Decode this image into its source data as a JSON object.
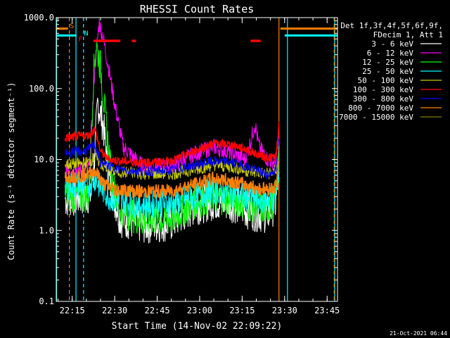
{
  "chart_data": {
    "type": "line",
    "title": "RHESSI Count Rates",
    "xlabel": "Start Time (14-Nov-02 22:09:22)",
    "ylabel": "Count Rate (s⁻¹ detector segment⁻¹)",
    "y_scale": "log",
    "ylim": [
      0.1,
      1000
    ],
    "y_ticks": [
      {
        "v": 1000,
        "label": "1000.0"
      },
      {
        "v": 100,
        "label": "100.0"
      },
      {
        "v": 10,
        "label": "10.0"
      },
      {
        "v": 1,
        "label": "1.0"
      },
      {
        "v": 0.1,
        "label": "0.1"
      }
    ],
    "xlim": [
      "22:09:22",
      "23:48:40"
    ],
    "x_ticks": [
      "22:15",
      "22:30",
      "22:45",
      "23:00",
      "23:15",
      "23:30",
      "23:45"
    ],
    "legend_position": "right",
    "legend_header": [
      "Det 1f,3f,4f,5f,6f,9f,",
      "FDecim 1, Att 1"
    ],
    "data_start": "22:12:30",
    "data_end": "23:28:00",
    "series": [
      {
        "name": "3 - 6 keV",
        "color": "#ffffff",
        "x": [
          "22:12:30",
          "22:16:00",
          "22:19:00",
          "22:21:30",
          "22:23:00",
          "22:24:00",
          "22:26:00",
          "22:28:00",
          "22:32:00",
          "22:40:00",
          "22:50:00",
          "22:58:00",
          "23:05:00",
          "23:12:00",
          "23:16:00",
          "23:20:00",
          "23:24:00",
          "23:27:00",
          "23:28:00"
        ],
        "y": [
          2.8,
          2.9,
          3.0,
          3.2,
          12,
          65,
          30,
          5,
          1.5,
          1.2,
          1.3,
          2.2,
          2.6,
          2.4,
          2.0,
          1.8,
          1.7,
          2.5,
          8
        ]
      },
      {
        "name": "6 - 12 keV",
        "color": "#ff00ff",
        "x": [
          "22:12:30",
          "22:16:00",
          "22:19:00",
          "22:21:00",
          "22:23:00",
          "22:24:30",
          "22:26:00",
          "22:28:00",
          "22:30:00",
          "22:33:00",
          "22:40:00",
          "22:50:00",
          "22:58:00",
          "23:05:00",
          "23:12:00",
          "23:16:00",
          "23:18:00",
          "23:19:30",
          "23:21:00",
          "23:24:00",
          "23:27:00",
          "23:28:00"
        ],
        "y": [
          7.5,
          7.3,
          7.2,
          7.5,
          200,
          860,
          500,
          180,
          60,
          15,
          8,
          8,
          12,
          15,
          12,
          10,
          18,
          32,
          15,
          10,
          9,
          22
        ]
      },
      {
        "name": "12 - 25 keV",
        "color": "#00ff00",
        "x": [
          "22:12:30",
          "22:16:00",
          "22:19:00",
          "22:21:00",
          "22:22:30",
          "22:23:30",
          "22:25:00",
          "22:27:00",
          "22:29:00",
          "22:32:00",
          "22:40:00",
          "22:50:00",
          "22:58:00",
          "23:05:00",
          "23:12:00",
          "23:16:00",
          "23:20:00",
          "23:24:00",
          "23:27:00",
          "23:28:00"
        ],
        "y": [
          3.2,
          3.1,
          3.0,
          3.2,
          150,
          430,
          200,
          30,
          5,
          2,
          1.4,
          1.5,
          2.5,
          3.0,
          2.8,
          2.5,
          2.2,
          2.0,
          3,
          10
        ]
      },
      {
        "name": "25 - 50 keV",
        "color": "#00ffff",
        "x": [
          "22:12:30",
          "22:16:00",
          "22:19:00",
          "22:21:00",
          "22:23:00",
          "22:25:00",
          "22:28:00",
          "22:32:00",
          "22:40:00",
          "22:50:00",
          "22:58:00",
          "23:05:00",
          "23:12:00",
          "23:16:00",
          "23:20:00",
          "23:24:00",
          "23:27:00",
          "23:28:00"
        ],
        "y": [
          4.2,
          4.3,
          4.2,
          4.5,
          5.5,
          4.0,
          3.0,
          2.5,
          2.3,
          2.4,
          2.9,
          3.6,
          3.4,
          3.0,
          2.8,
          2.7,
          3.0,
          8
        ]
      },
      {
        "name": "50 - 100 keV",
        "color": "#cccc00",
        "x": [
          "22:12:30",
          "22:16:00",
          "22:19:00",
          "22:21:00",
          "22:23:00",
          "22:26:00",
          "22:30:00",
          "22:40:00",
          "22:50:00",
          "22:58:00",
          "23:05:00",
          "23:12:00",
          "23:16:00",
          "23:20:00",
          "23:24:00",
          "23:27:00",
          "23:28:00"
        ],
        "y": [
          8.5,
          8.6,
          8.8,
          9.2,
          11,
          8,
          6.8,
          6.3,
          6.3,
          7.2,
          8.4,
          7.8,
          7.0,
          6.6,
          6.3,
          7.0,
          14
        ]
      },
      {
        "name": "100 - 300 keV",
        "color": "#ff0000",
        "x": [
          "22:12:30",
          "22:16:00",
          "22:19:00",
          "22:21:00",
          "22:23:00",
          "22:25:00",
          "22:28:00",
          "22:32:00",
          "22:40:00",
          "22:50:00",
          "22:58:00",
          "23:05:00",
          "23:12:00",
          "23:16:00",
          "23:20:00",
          "23:24:00",
          "23:27:00",
          "23:28:00"
        ],
        "y": [
          20,
          21,
          21.5,
          22,
          27,
          13,
          10,
          9.5,
          9.0,
          9.5,
          13,
          17,
          16,
          14,
          12,
          10.5,
          11,
          30
        ]
      },
      {
        "name": "300 - 800 keV",
        "color": "#0000ff",
        "x": [
          "22:12:30",
          "22:16:00",
          "22:19:00",
          "22:21:00",
          "22:23:00",
          "22:25:00",
          "22:28:00",
          "22:32:00",
          "22:40:00",
          "22:50:00",
          "22:58:00",
          "23:05:00",
          "23:12:00",
          "23:16:00",
          "23:20:00",
          "23:24:00",
          "23:27:00",
          "23:28:00"
        ],
        "y": [
          12.5,
          13,
          13,
          14,
          16,
          9,
          8,
          7.2,
          6.8,
          7.0,
          8.3,
          9.5,
          9.0,
          8.0,
          7.0,
          6.2,
          7,
          18
        ]
      },
      {
        "name": "800 - 7000 keV",
        "color": "#ff7f00",
        "x": [
          "22:12:30",
          "22:16:00",
          "22:19:00",
          "22:21:00",
          "22:23:00",
          "22:26:00",
          "22:30:00",
          "22:40:00",
          "22:50:00",
          "22:58:00",
          "23:05:00",
          "23:12:00",
          "23:16:00",
          "23:20:00",
          "23:24:00",
          "23:27:00",
          "23:28:00"
        ],
        "y": [
          5.8,
          5.9,
          6.0,
          6.3,
          7.0,
          4.5,
          3.8,
          3.5,
          3.6,
          4.4,
          5.4,
          4.9,
          4.4,
          4.0,
          3.8,
          4.2,
          10
        ]
      },
      {
        "name": "7000 - 15000 keV",
        "color": "#808000",
        "x": [],
        "y": []
      }
    ],
    "attenuator_bars": [
      {
        "x": [
          "22:09:22",
          "22:13:30"
        ],
        "value": 700,
        "color": "#ff7f00"
      },
      {
        "x": [
          "22:09:22",
          "22:16:30"
        ],
        "value": 560,
        "color": "#00ffff"
      },
      {
        "x": [
          "23:28:30",
          "23:48:40"
        ],
        "value": 700,
        "color": "#ff7f00"
      },
      {
        "x": [
          "23:30:00",
          "23:48:40"
        ],
        "value": 560,
        "color": "#00ffff"
      }
    ],
    "flare_flag_segments": [
      {
        "x": [
          "22:22:30",
          "22:32:00"
        ],
        "value": 470,
        "color": "#ff0000"
      },
      {
        "x": [
          "22:36:00",
          "22:37:30"
        ],
        "value": 470,
        "color": "#ff0000"
      },
      {
        "x": [
          "23:18:00",
          "23:21:30"
        ],
        "value": 470,
        "color": "#ff0000"
      }
    ],
    "vertical_markers": [
      {
        "x": "22:09:30",
        "color": "#00ffff",
        "style": "solid"
      },
      {
        "x": "22:14:00",
        "color": "#ff7f00",
        "style": "dashed"
      },
      {
        "x": "22:16:20",
        "color": "#00ffff",
        "style": "solid"
      },
      {
        "x": "22:19:00",
        "color": "#00ffff",
        "style": "dashed"
      },
      {
        "x": "23:28:00",
        "color": "#ff7f00",
        "style": "solid"
      },
      {
        "x": "23:31:00",
        "color": "#00ffff",
        "style": "solid"
      },
      {
        "x": "23:47:40",
        "color": "#00ffff",
        "style": "solid"
      },
      {
        "x": "23:47:30",
        "color": "#ff7f00",
        "style": "dashed"
      }
    ],
    "markers_text": [
      {
        "text": "S",
        "color": "#ff7f00",
        "x": "22:14:10",
        "y": 710
      },
      {
        "text": "N",
        "color": "#00ffff",
        "x": "22:19:10",
        "y": 560
      },
      {
        "text": "F",
        "color": "#ff0000",
        "x": "22:17:10",
        "y": 460
      }
    ],
    "footer_date": "21-Oct-2021 06:44"
  }
}
